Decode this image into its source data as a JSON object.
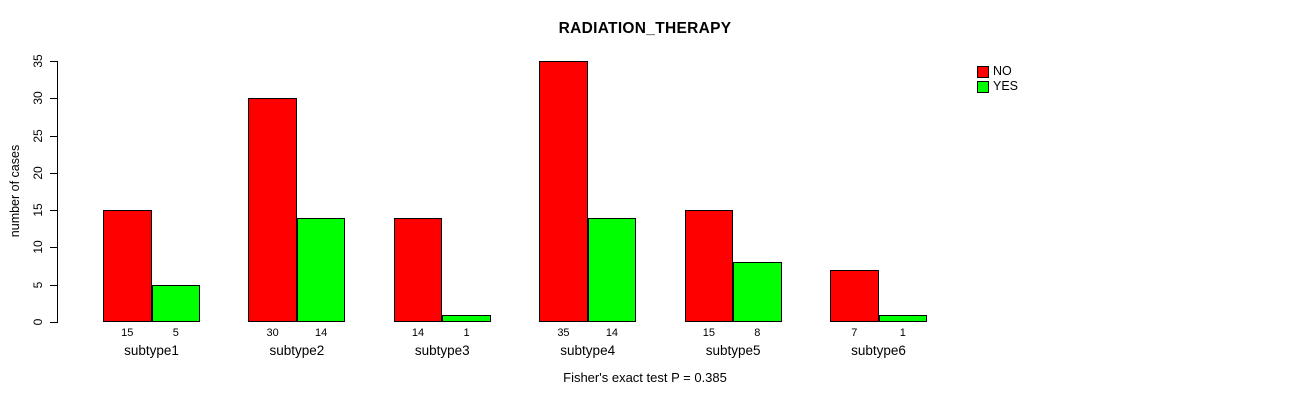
{
  "title": "RADIATION_THERAPY",
  "footer": "Fisher's exact test P = 0.385",
  "legend": {
    "position": "top-right",
    "items": [
      {
        "label": "NO",
        "color": "#ff0000"
      },
      {
        "label": "YES",
        "color": "#00ff00"
      }
    ]
  },
  "chart_data": {
    "type": "bar",
    "grouped": true,
    "categories": [
      "subtype1",
      "subtype2",
      "subtype3",
      "subtype4",
      "subtype5",
      "subtype6"
    ],
    "series": [
      {
        "name": "NO",
        "color": "#ff0000",
        "values": [
          15,
          30,
          14,
          35,
          15,
          7
        ]
      },
      {
        "name": "YES",
        "color": "#00ff00",
        "values": [
          5,
          14,
          1,
          14,
          8,
          1
        ]
      }
    ],
    "title": "RADIATION_THERAPY",
    "xlabel": "",
    "ylabel": "number of cases",
    "ylim": [
      0,
      35
    ],
    "yticks": [
      0,
      5,
      10,
      15,
      20,
      25,
      30,
      35
    ],
    "grid": false,
    "bar_border_color": "#000000",
    "value_labels_below_bars": true,
    "annotation": "Fisher's exact test P = 0.385"
  }
}
